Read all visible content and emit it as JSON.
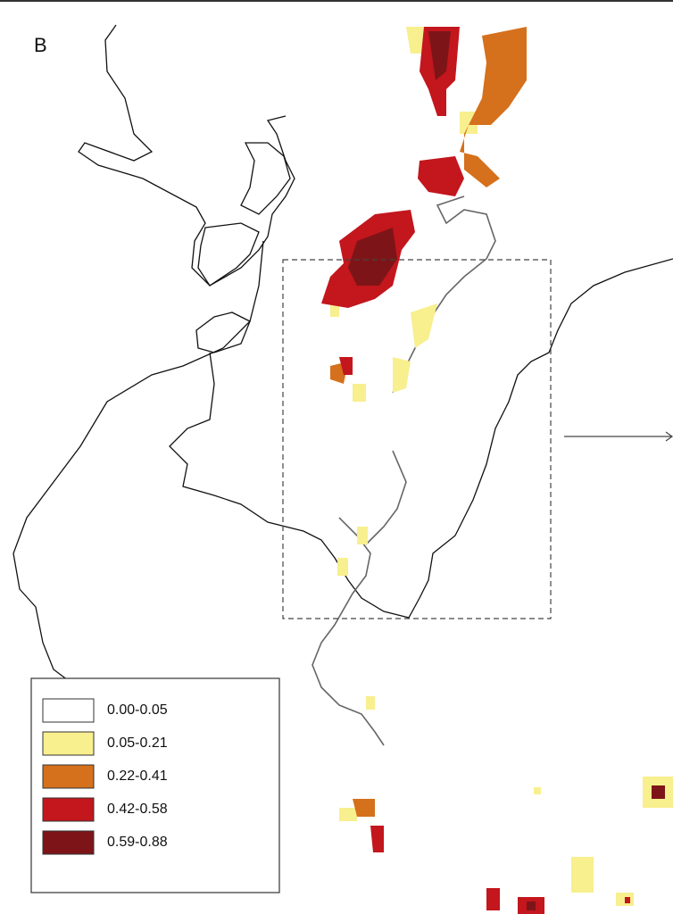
{
  "panel_label": "B",
  "legend": {
    "items": [
      {
        "label": "0.00-0.05",
        "color": "#ffffff"
      },
      {
        "label": "0.05-0.21",
        "color": "#f8ef8e"
      },
      {
        "label": "0.22-0.41",
        "color": "#d5701c"
      },
      {
        "label": "0.42-0.58",
        "color": "#c3161d"
      },
      {
        "label": "0.59-0.88",
        "color": "#7d1518"
      }
    ]
  }
}
